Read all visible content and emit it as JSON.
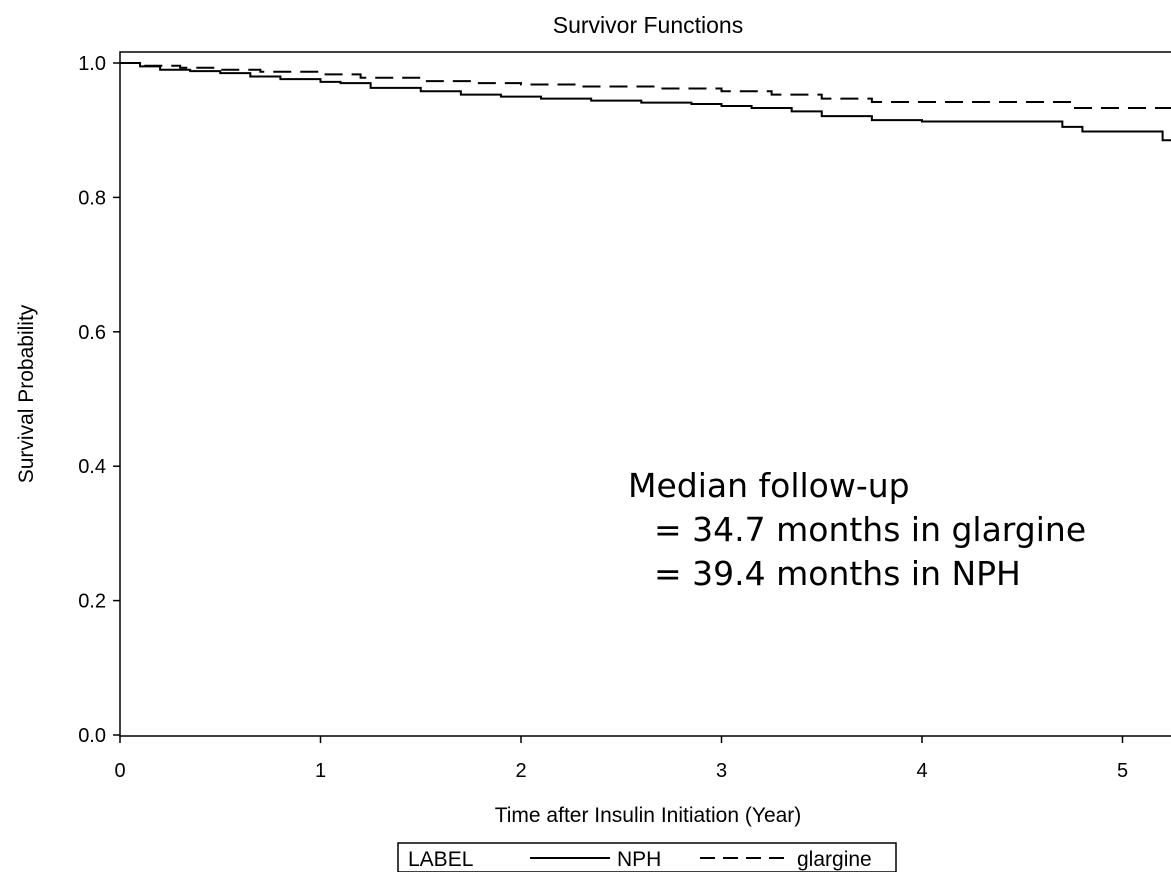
{
  "chart_data": {
    "type": "line",
    "title": "Survivor Functions",
    "xlabel": "Time after Insulin Initiation (Year)",
    "ylabel": "Survival Probability",
    "xlim": [
      0,
      5.25
    ],
    "ylim": [
      0,
      1.0
    ],
    "x_ticks": [
      "0",
      "1",
      "2",
      "3",
      "4",
      "5"
    ],
    "y_ticks": [
      "0.0",
      "0.2",
      "0.4",
      "0.6",
      "0.8",
      "1.0"
    ],
    "step": true,
    "grid": false,
    "legend": {
      "placement": "bottom",
      "title": "LABEL",
      "entries": [
        {
          "name": "NPH",
          "style": "solid"
        },
        {
          "name": "glargine",
          "style": "dashed"
        }
      ]
    },
    "series": [
      {
        "name": "NPH",
        "style": "solid",
        "x": [
          0,
          0.1,
          0.2,
          0.35,
          0.5,
          0.65,
          0.8,
          1.0,
          1.1,
          1.25,
          1.5,
          1.7,
          1.9,
          2.1,
          2.35,
          2.6,
          2.85,
          3.0,
          3.15,
          3.35,
          3.5,
          3.75,
          4.0,
          4.3,
          4.5,
          4.7,
          4.8,
          5.0,
          5.2,
          5.25
        ],
        "y": [
          1.0,
          0.995,
          0.99,
          0.988,
          0.985,
          0.98,
          0.976,
          0.972,
          0.97,
          0.963,
          0.958,
          0.953,
          0.95,
          0.947,
          0.944,
          0.941,
          0.939,
          0.936,
          0.933,
          0.928,
          0.921,
          0.915,
          0.913,
          0.913,
          0.913,
          0.905,
          0.898,
          0.898,
          0.885,
          0.88
        ]
      },
      {
        "name": "glargine",
        "style": "dashed",
        "x": [
          0,
          0.1,
          0.3,
          0.5,
          0.7,
          1.0,
          1.2,
          1.5,
          1.75,
          2.0,
          2.3,
          2.7,
          3.0,
          3.25,
          3.5,
          3.75,
          4.0,
          4.3,
          4.5,
          4.75,
          5.0,
          5.2,
          5.25
        ],
        "y": [
          1.0,
          0.996,
          0.993,
          0.99,
          0.987,
          0.983,
          0.978,
          0.973,
          0.97,
          0.968,
          0.965,
          0.962,
          0.958,
          0.953,
          0.947,
          0.942,
          0.942,
          0.942,
          0.942,
          0.933,
          0.933,
          0.933,
          0.925
        ]
      }
    ],
    "annotations": [
      "Median follow-up",
      "= 34.7 months in glargine",
      "= 39.4 months in NPH"
    ]
  }
}
